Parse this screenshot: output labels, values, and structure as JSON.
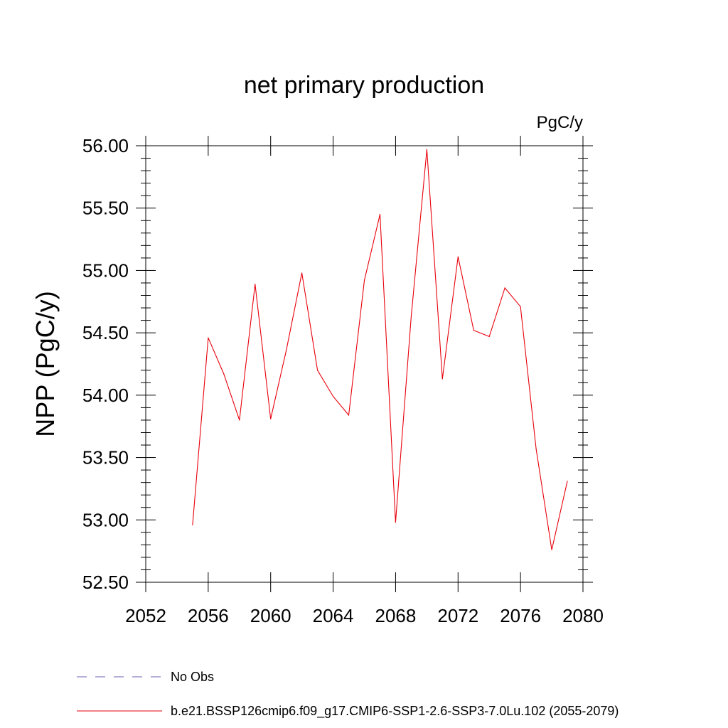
{
  "chart_data": {
    "type": "line",
    "title": "net primary production",
    "units": "PgC/y",
    "ylabel": "NPP  (PgC/y)",
    "xlabel": "",
    "xlim": [
      2052,
      2080
    ],
    "ylim": [
      52.5,
      56.0
    ],
    "x_ticks": [
      "2052",
      "2056",
      "2060",
      "2064",
      "2068",
      "2072",
      "2076",
      "2080"
    ],
    "y_ticks": [
      "52.50",
      "53.00",
      "53.50",
      "54.00",
      "54.50",
      "55.00",
      "55.50",
      "56.00"
    ],
    "grid": false,
    "series": [
      {
        "name": "b.e21.BSSP126cmip6.f09_g17.CMIP6-SSP1-2.6-SSP3-7.0Lu.102 (2055-2079)",
        "color": "#e8000b",
        "style": "solid",
        "x": [
          2055,
          2056,
          2057,
          2058,
          2059,
          2060,
          2061,
          2062,
          2063,
          2064,
          2065,
          2066,
          2067,
          2068,
          2069,
          2070,
          2071,
          2072,
          2073,
          2074,
          2075,
          2076,
          2077,
          2078,
          2079
        ],
        "y": [
          52.96,
          54.46,
          54.17,
          53.8,
          54.89,
          53.81,
          54.36,
          54.98,
          54.2,
          53.99,
          53.84,
          54.92,
          55.45,
          52.98,
          54.63,
          55.97,
          54.13,
          55.11,
          54.52,
          54.47,
          54.86,
          54.71,
          53.57,
          52.76,
          53.31
        ]
      }
    ],
    "legend": [
      {
        "label": "No Obs",
        "color": "#6b5fb0",
        "style": "dashed"
      },
      {
        "label": "b.e21.BSSP126cmip6.f09_g17.CMIP6-SSP1-2.6-SSP3-7.0Lu.102 (2055-2079)",
        "color": "#e8000b",
        "style": "solid"
      }
    ],
    "legend_position": "bottom-left"
  }
}
